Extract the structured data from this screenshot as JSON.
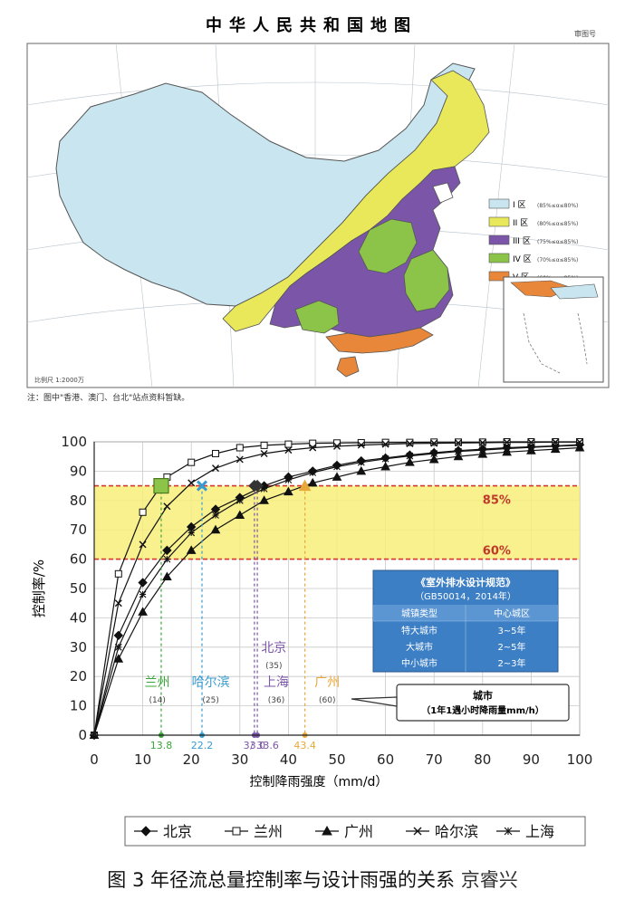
{
  "map": {
    "title": "中华人民共和国地图",
    "note": "注：图中\"香港、澳门、台北\"站点资料暂缺。",
    "scale_text": "比例尺 1:2000万",
    "corner_text": "审图号",
    "zones": [
      {
        "label": "I 区",
        "desc": "(85%≤α≤80%)",
        "color": "#c9e6f0"
      },
      {
        "label": "II 区",
        "desc": "(80%≤α≤85%)",
        "color": "#e8e85a"
      },
      {
        "label": "III 区",
        "desc": "(75%≤α≤85%)",
        "color": "#7b55a8"
      },
      {
        "label": "IV 区",
        "desc": "(70%≤α≤85%)",
        "color": "#8cc44a"
      },
      {
        "label": "V 区",
        "desc": "(60%≤α≤85%)",
        "color": "#e8873a"
      }
    ],
    "colors": {
      "sea": "#ffffff",
      "border": "#555555",
      "zone1": "#c9e6f0",
      "zone2": "#e8e85a",
      "zone3": "#7b55a8",
      "zone4": "#8cc44a",
      "zone5": "#e8873a"
    }
  },
  "chart_data": {
    "type": "line",
    "xlabel": "控制降雨强度（mm/d）",
    "ylabel": "控制率/%",
    "xlim": [
      0,
      100
    ],
    "ylim": [
      0,
      100
    ],
    "xticks": [
      0,
      10,
      20,
      30,
      40,
      50,
      60,
      70,
      80,
      90,
      100
    ],
    "yticks": [
      0,
      10,
      20,
      30,
      40,
      50,
      60,
      70,
      80,
      90,
      100
    ],
    "grid": true,
    "legend_position": "bottom",
    "band": {
      "low": 60,
      "high": 85,
      "low_label": "60%",
      "high_label": "85%",
      "color": "#f7ef7a"
    },
    "series": [
      {
        "name": "北京",
        "marker": "diamond",
        "color": "#111111",
        "x": [
          0,
          5,
          10,
          15,
          20,
          25,
          30,
          35,
          40,
          45,
          50,
          55,
          60,
          65,
          70,
          75,
          80,
          85,
          90,
          95,
          100
        ],
        "y": [
          0,
          34,
          52,
          63,
          71,
          77,
          81,
          85,
          88,
          90,
          92,
          93.5,
          94.5,
          95.5,
          96.3,
          97,
          97.5,
          98,
          98.3,
          98.6,
          99
        ]
      },
      {
        "name": "兰州",
        "marker": "square",
        "color": "#111111",
        "x": [
          0,
          5,
          10,
          15,
          20,
          25,
          30,
          35,
          40,
          45,
          50,
          55,
          60,
          65,
          70,
          75,
          80,
          85,
          90,
          95,
          100
        ],
        "y": [
          0,
          55,
          76,
          88,
          93,
          96,
          98,
          98.8,
          99.2,
          99.5,
          99.6,
          99.7,
          99.8,
          99.8,
          99.9,
          99.9,
          99.9,
          100,
          100,
          100,
          100
        ]
      },
      {
        "name": "广州",
        "marker": "triangle",
        "color": "#111111",
        "x": [
          0,
          5,
          10,
          15,
          20,
          25,
          30,
          35,
          40,
          45,
          50,
          55,
          60,
          65,
          70,
          75,
          80,
          85,
          90,
          95,
          100
        ],
        "y": [
          0,
          26,
          42,
          54,
          63,
          70,
          75,
          80,
          83,
          86,
          88,
          90,
          91.5,
          93,
          94,
          95,
          95.8,
          96.5,
          97,
          97.5,
          98
        ]
      },
      {
        "name": "哈尔滨",
        "marker": "x",
        "color": "#111111",
        "x": [
          0,
          5,
          10,
          15,
          20,
          25,
          30,
          35,
          40,
          45,
          50,
          55,
          60,
          65,
          70,
          75,
          80,
          85,
          90,
          95,
          100
        ],
        "y": [
          0,
          45,
          65,
          78,
          86,
          91,
          94,
          96,
          97.2,
          98,
          98.5,
          98.9,
          99.2,
          99.4,
          99.5,
          99.6,
          99.7,
          99.8,
          99.8,
          99.9,
          99.9
        ]
      },
      {
        "name": "上海",
        "marker": "star",
        "color": "#111111",
        "x": [
          0,
          5,
          10,
          15,
          20,
          25,
          30,
          35,
          40,
          45,
          50,
          55,
          60,
          65,
          70,
          75,
          80,
          85,
          90,
          95,
          100
        ],
        "y": [
          0,
          30,
          48,
          60,
          69,
          75,
          80,
          84,
          87,
          89.5,
          91.5,
          93,
          94.2,
          95.2,
          96,
          96.7,
          97.2,
          97.7,
          98.1,
          98.5,
          98.8
        ]
      }
    ],
    "markers": [
      {
        "city": "兰州",
        "rain": "(14)",
        "x": 13.8,
        "value_label": "13.8",
        "color": "#3aa53a",
        "shape": "square"
      },
      {
        "city": "哈尔滨",
        "rain": "(25)",
        "x": 22.2,
        "value_label": "22.2",
        "color": "#3a9bd0",
        "shape": "cross"
      },
      {
        "city": "北京",
        "rain": "(35)",
        "x": 33.0,
        "value_label": "33.0",
        "color": "#7b55a8",
        "shape": "diamond"
      },
      {
        "city": "上海",
        "rain": "(36)",
        "x": 33.6,
        "value_label": "/ 33.6",
        "color": "#7b55a8",
        "shape": "diamond"
      },
      {
        "city": "广州",
        "rain": "(60)",
        "x": 43.4,
        "value_label": "43.4",
        "color": "#e8a73a",
        "shape": "triangle"
      }
    ],
    "callout": {
      "line1": "城市",
      "line2": "（1年1遇小时降雨量mm/h）"
    },
    "standard_table": {
      "title": "《室外排水设计规范》",
      "subtitle": "（GB50014，2014年）",
      "header": [
        "城镇类型",
        "中心城区"
      ],
      "rows": [
        [
          "特大城市",
          "3~5年"
        ],
        [
          "大城市",
          "2~5年"
        ],
        [
          "中小城市",
          "2~3年"
        ]
      ]
    }
  },
  "caption": {
    "text": "图 3  年径流总量控制率与设计雨强的关系",
    "watermark": "京睿兴"
  }
}
